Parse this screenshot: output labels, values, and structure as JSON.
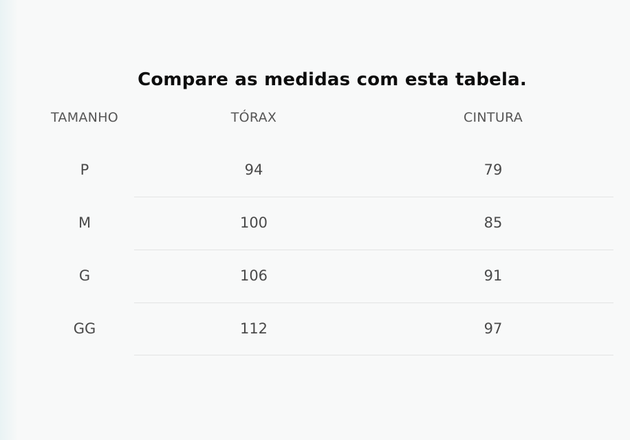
{
  "title": "Compare as medidas com esta tabela.",
  "table": {
    "headers": [
      "TAMANHO",
      "TÓRAX",
      "CINTURA"
    ],
    "rows": [
      [
        "P",
        "94",
        "79"
      ],
      [
        "M",
        "100",
        "85"
      ],
      [
        "G",
        "106",
        "91"
      ],
      [
        "GG",
        "112",
        "97"
      ]
    ]
  },
  "colors": {
    "background": "#f8f9f9",
    "title": "#0d0d0d",
    "text": "#4d4d4d",
    "divider": "#e3e4e4"
  }
}
